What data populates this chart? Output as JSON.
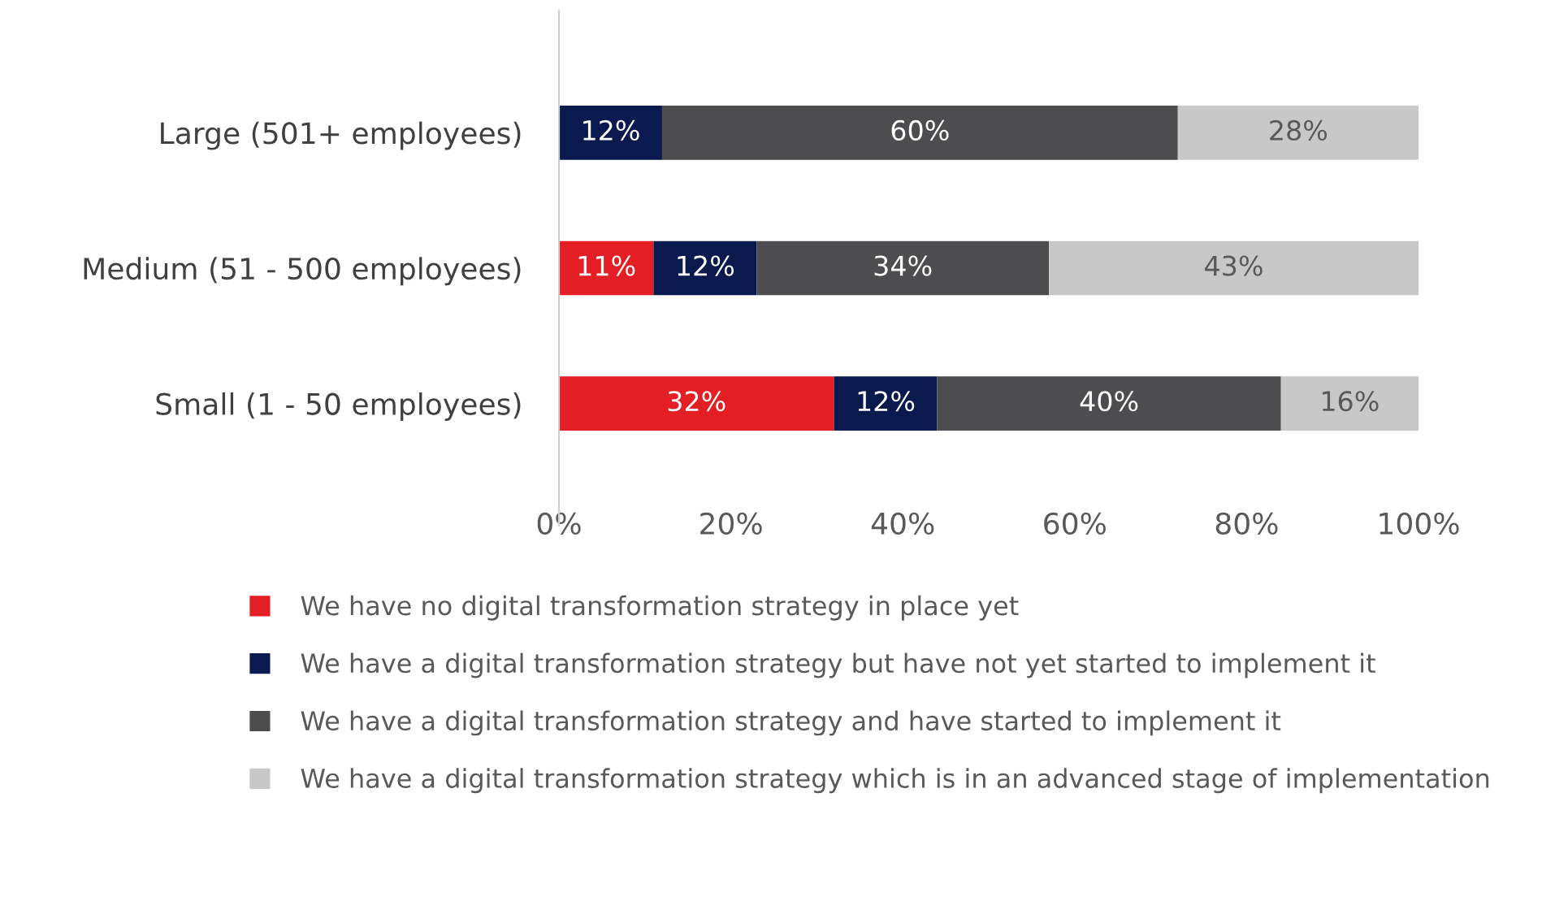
{
  "chart_data": {
    "type": "bar",
    "orientation": "horizontal",
    "stacked": true,
    "categories": [
      "Large (501+ employees)",
      "Medium (51 - 500 employees)",
      "Small (1 - 50 employees)"
    ],
    "series": [
      {
        "name": "We have no digital transformation strategy in place yet",
        "color": "#e31e24",
        "values": [
          null,
          11,
          32
        ],
        "value_labels": [
          null,
          "11%",
          "32%"
        ]
      },
      {
        "name": "We have a digital transformation strategy but have not yet started to implement it",
        "color": "#0b1a4e",
        "values": [
          12,
          12,
          12
        ],
        "value_labels": [
          "12%",
          "12%",
          "12%"
        ]
      },
      {
        "name": "We have a digital transformation strategy and have started to implement it",
        "color": "#4d4d4f",
        "values": [
          60,
          34,
          40
        ],
        "value_labels": [
          "60%",
          "34%",
          "40%"
        ]
      },
      {
        "name": "We have a digital transformation strategy which is in an advanced stage of implementation",
        "color": "#c8c8c9",
        "values": [
          28,
          43,
          16
        ],
        "value_labels": [
          "28%",
          "43%",
          "16%"
        ]
      }
    ],
    "xlim": [
      0,
      100
    ],
    "xticks": [
      {
        "value": 0,
        "label": "0%"
      },
      {
        "value": 20,
        "label": "20%"
      },
      {
        "value": 40,
        "label": "40%"
      },
      {
        "value": 60,
        "label": "60%"
      },
      {
        "value": 80,
        "label": "80%"
      },
      {
        "value": 100,
        "label": "100%"
      }
    ],
    "grid": false,
    "legend": "bottom"
  }
}
